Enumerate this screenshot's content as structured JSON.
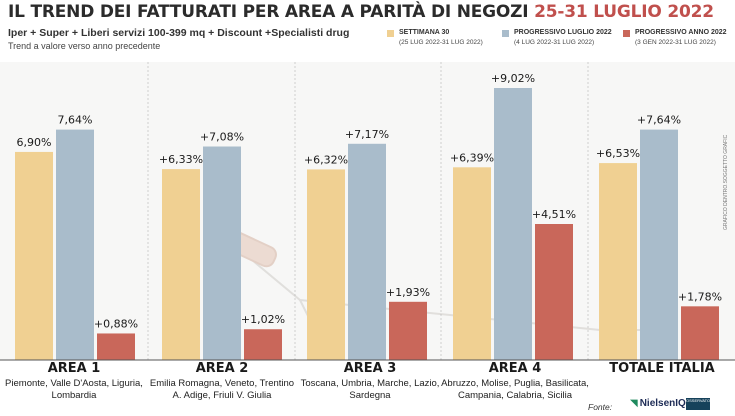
{
  "title": "IL TREND DEI FATTURATI PER AREA A PARITÀ DI NEGOZI",
  "title_period": "25-31 LUGLIO 2022",
  "subtitle": "Iper + Super + Liberi servizi 100-399 mq + Discount +Specialisti drug",
  "note": "Trend a valore verso anno precedente",
  "credit": "GRAFICO DENTRO.SOGGETTO GRAFIC",
  "source": "Fonte:",
  "logo_nielsen": "NielsenIQ",
  "logo_osservatorio": "OSSERVATORIO",
  "colors": {
    "settimana": "#f0d092",
    "luglio": "#a9bccb",
    "anno": "#c9675a",
    "title_highlight": "#c0504d"
  },
  "chart_data": {
    "type": "bar",
    "title": "IL TREND DEI FATTURATI PER AREA A PARITÀ DI NEGOZI 25-31 LUGLIO 2022",
    "categories": [
      "AREA 1",
      "AREA 2",
      "AREA 3",
      "AREA 4",
      "TOTALE ITALIA"
    ],
    "category_descriptions": [
      "Piemonte, Valle D'Aosta, Liguria, Lombardia",
      "Emilia Romagna, Veneto, Trentino A. Adige, Friuli V. Giulia",
      "Toscana, Umbria, Marche, Lazio, Sardegna",
      "Abruzzo, Molise, Puglia, Basilicata, Campania, Calabria, Sicilia",
      ""
    ],
    "series": [
      {
        "name": "SETTIMANA 30",
        "range": "(25 LUG 2022-31 LUG 2022)",
        "values": [
          6.9,
          6.33,
          6.32,
          6.39,
          6.53
        ],
        "labels": [
          "6,90%",
          "+6,33%",
          "+6,32%",
          "+6,39%",
          "+6,53%"
        ]
      },
      {
        "name": "PROGRESSIVO LUGLIO 2022",
        "range": "(4 LUG 2022-31 LUG 2022)",
        "values": [
          7.64,
          7.08,
          7.17,
          9.02,
          7.64
        ],
        "labels": [
          "7,64%",
          "+7,08%",
          "+7,17%",
          "+9,02%",
          "+7,64%"
        ]
      },
      {
        "name": "PROGRESSIVO ANNO 2022",
        "range": "(3 GEN 2022-31 LUG 2022)",
        "values": [
          0.88,
          1.02,
          1.93,
          4.51,
          1.78
        ],
        "labels": [
          "+0,88%",
          "+1,02%",
          "+1,93%",
          "+4,51%",
          "+1,78%"
        ]
      }
    ],
    "ylim": [
      0,
      10
    ],
    "grid": false,
    "legend_placement": "top-right"
  }
}
